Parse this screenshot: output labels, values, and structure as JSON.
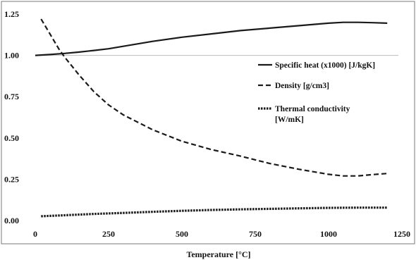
{
  "chart_data": {
    "type": "line",
    "xlabel": "Temperature [°C]",
    "ylabel": "",
    "xlim": [
      0,
      1250
    ],
    "ylim": [
      0,
      1.25
    ],
    "x_ticks": [
      "0",
      "250",
      "500",
      "750",
      "1000",
      "1250"
    ],
    "y_ticks": [
      "0.00",
      "0.25",
      "0.50",
      "0.75",
      "1.00",
      "1.25"
    ],
    "grid": "horizontal line at 1.00",
    "legend_position": "right",
    "series": [
      {
        "name": "Specific heat (x1000) [J/kgK]",
        "style": "solid",
        "points": [
          [
            0,
            1.0
          ],
          [
            50,
            1.005
          ],
          [
            100,
            1.012
          ],
          [
            150,
            1.02
          ],
          [
            200,
            1.03
          ],
          [
            250,
            1.04
          ],
          [
            300,
            1.055
          ],
          [
            400,
            1.085
          ],
          [
            500,
            1.11
          ],
          [
            600,
            1.13
          ],
          [
            700,
            1.15
          ],
          [
            800,
            1.165
          ],
          [
            900,
            1.18
          ],
          [
            1000,
            1.195
          ],
          [
            1050,
            1.2
          ],
          [
            1100,
            1.2
          ],
          [
            1150,
            1.198
          ],
          [
            1200,
            1.195
          ]
        ]
      },
      {
        "name": "Density [g/cm3]",
        "style": "dashed",
        "points": [
          [
            20,
            1.22
          ],
          [
            50,
            1.13
          ],
          [
            80,
            1.04
          ],
          [
            100,
            0.99
          ],
          [
            150,
            0.88
          ],
          [
            200,
            0.78
          ],
          [
            250,
            0.7
          ],
          [
            300,
            0.64
          ],
          [
            400,
            0.55
          ],
          [
            500,
            0.48
          ],
          [
            600,
            0.43
          ],
          [
            700,
            0.39
          ],
          [
            800,
            0.345
          ],
          [
            900,
            0.31
          ],
          [
            1000,
            0.28
          ],
          [
            1050,
            0.27
          ],
          [
            1100,
            0.27
          ],
          [
            1150,
            0.278
          ],
          [
            1200,
            0.285
          ]
        ]
      },
      {
        "name": "Thermal conductivity [W/mK]",
        "style": "dotted",
        "points": [
          [
            20,
            0.026
          ],
          [
            100,
            0.032
          ],
          [
            200,
            0.04
          ],
          [
            300,
            0.046
          ],
          [
            400,
            0.053
          ],
          [
            500,
            0.059
          ],
          [
            600,
            0.064
          ],
          [
            700,
            0.068
          ],
          [
            800,
            0.071
          ],
          [
            900,
            0.074
          ],
          [
            1000,
            0.077
          ],
          [
            1100,
            0.078
          ],
          [
            1200,
            0.078
          ]
        ]
      }
    ]
  },
  "legend": [
    {
      "lines": [
        "Specific heat (x1000) [J/kgK]"
      ]
    },
    {
      "lines": [
        "Density [g/cm3]"
      ]
    },
    {
      "lines": [
        "Thermal conductivity",
        "[W/mK]"
      ]
    }
  ]
}
